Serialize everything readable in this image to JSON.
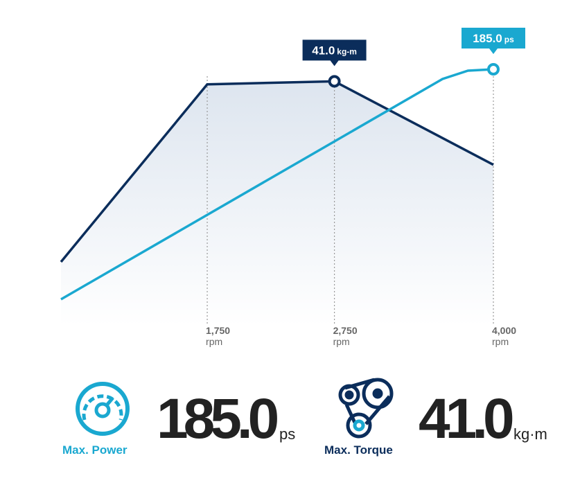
{
  "chart_data": {
    "type": "line",
    "xlim": [
      600,
      4000
    ],
    "xticks": [
      {
        "value": 1750,
        "label": "1,750"
      },
      {
        "value": 2750,
        "label": "2,750"
      },
      {
        "value": 4000,
        "label": "4,000"
      }
    ],
    "x_unit": "rpm",
    "ylim": [
      0,
      50
    ],
    "y2lim": [
      0,
      215
    ],
    "series": [
      {
        "name": "Torque",
        "color": "#0b2d5b",
        "x": [
          600,
          1750,
          2750,
          4000
        ],
        "values": [
          10.7,
          40.5,
          41.0,
          27.0
        ],
        "peak_label": "41.0",
        "unit": "kg-m"
      },
      {
        "name": "Power",
        "color": "#1aa8d0",
        "axis": "y2",
        "x": [
          600,
          3600,
          3800,
          4000
        ],
        "values": [
          19,
          178,
          184,
          185.0
        ],
        "peak_label": "185.0",
        "unit": "ps"
      }
    ]
  },
  "stats": [
    {
      "label": "Max. Power",
      "value_label": "185.0",
      "unit": "ps"
    },
    {
      "label": "Max. Torque",
      "value_label": "41.0",
      "unit": "kg·m"
    }
  ]
}
